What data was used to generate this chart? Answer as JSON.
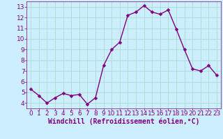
{
  "x": [
    0,
    1,
    2,
    3,
    4,
    5,
    6,
    7,
    8,
    9,
    10,
    11,
    12,
    13,
    14,
    15,
    16,
    17,
    18,
    19,
    20,
    21,
    22,
    23
  ],
  "y": [
    5.3,
    4.7,
    4.0,
    4.5,
    4.9,
    4.7,
    4.8,
    3.9,
    4.5,
    7.5,
    9.0,
    9.7,
    12.2,
    12.5,
    13.1,
    12.5,
    12.3,
    12.7,
    10.9,
    9.0,
    7.2,
    7.0,
    7.5,
    6.6
  ],
  "line_color": "#800080",
  "marker_color": "#800080",
  "bg_color": "#cceeff",
  "grid_color": "#aaddcc",
  "xlabel": "Windchill (Refroidissement éolien,°C)",
  "xlim": [
    -0.5,
    23.5
  ],
  "ylim": [
    3.5,
    13.5
  ],
  "yticks": [
    4,
    5,
    6,
    7,
    8,
    9,
    10,
    11,
    12,
    13
  ],
  "xticks": [
    0,
    1,
    2,
    3,
    4,
    5,
    6,
    7,
    8,
    9,
    10,
    11,
    12,
    13,
    14,
    15,
    16,
    17,
    18,
    19,
    20,
    21,
    22,
    23
  ],
  "tick_label_color": "#800080",
  "xlabel_color": "#800080",
  "xlabel_fontsize": 7.0,
  "tick_fontsize": 6.5,
  "linewidth": 1.0,
  "markersize": 2.5
}
